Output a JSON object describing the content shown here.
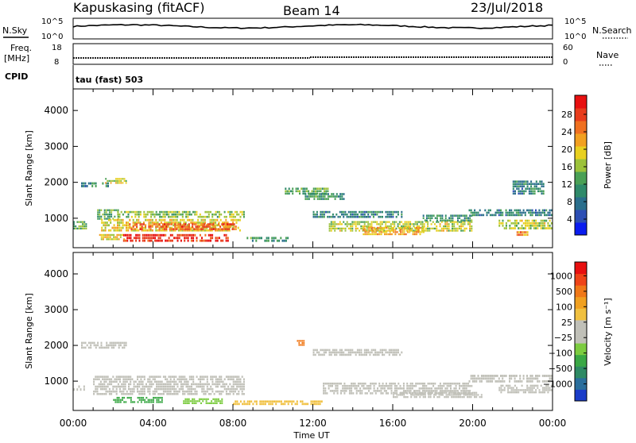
{
  "header": {
    "station": "Kapuskasing (fitACF)",
    "beam": "Beam 14",
    "date": "23/Jul/2018"
  },
  "aux_panels": {
    "nsky_label": "N.Sky",
    "nsky_ticks": [
      "10^5",
      "10^0"
    ],
    "nsearch_label": "N.Search",
    "nsearch_ticks": [
      "10^5",
      "10^0"
    ],
    "freq_label_1": "Freq.",
    "freq_label_2": "[MHz]",
    "freq_ticks": [
      "18",
      "8"
    ],
    "nave_label": "Nave",
    "nave_ticks": [
      "60",
      "0"
    ],
    "cpid_label": "CPID",
    "cpid_value": "tau (fast) 503"
  },
  "colorbars": {
    "power": {
      "label": "Power [dB]",
      "ticks": [
        "4",
        "8",
        "12",
        "16",
        "20",
        "24",
        "28"
      ],
      "colors": [
        "#0a1cf0",
        "#2d4fb4",
        "#2a6e8c",
        "#2f8a6a",
        "#4aa055",
        "#9cc23a",
        "#e8d020",
        "#f2a020",
        "#f07020",
        "#e83c1c",
        "#e81010"
      ]
    },
    "velocity": {
      "label": "Velocity [m s⁻¹]",
      "ticks": [
        "1000",
        "500",
        "100",
        "25",
        "−25",
        "−100",
        "−500",
        "−1000"
      ],
      "colors": [
        "#1a3cc8",
        "#2a6e9c",
        "#2e8a64",
        "#3aa845",
        "#7ccc40",
        "#c0c0b8",
        "#c0c0b8",
        "#f0c040",
        "#f0a020",
        "#f07818",
        "#ef4418",
        "#e81010"
      ]
    }
  },
  "axes": {
    "ylabel": "Slant Range [km]",
    "yticks": [
      "1000",
      "2000",
      "3000",
      "4000"
    ],
    "xticks": [
      "00:00",
      "04:00",
      "08:00",
      "12:00",
      "16:00",
      "20:00",
      "00:00"
    ],
    "xlabel": "Time UT"
  },
  "chart_data": [
    {
      "type": "heatmap",
      "name": "Power",
      "x_range_hours": [
        0,
        24
      ],
      "y_range_km": [
        180,
        4600
      ],
      "y_ticks": [
        1000,
        2000,
        3000,
        4000
      ],
      "x_ticks": [
        "00:00",
        "04:00",
        "08:00",
        "12:00",
        "16:00",
        "20:00",
        "00:00"
      ],
      "ylabel": "Slant Range [km]",
      "patches": [
        {
          "t": [
            0.0,
            0.7
          ],
          "r": [
            680,
            920
          ],
          "v": 12
        },
        {
          "t": [
            0.4,
            1.8
          ],
          "r": [
            1850,
            2000
          ],
          "v": 8
        },
        {
          "t": [
            1.6,
            2.7
          ],
          "r": [
            1950,
            2120
          ],
          "v": 16
        },
        {
          "t": [
            1.2,
            2.3
          ],
          "r": [
            950,
            1250
          ],
          "v": 12
        },
        {
          "t": [
            2.2,
            8.6
          ],
          "r": [
            1000,
            1200
          ],
          "v": 14
        },
        {
          "t": [
            1.4,
            8.4
          ],
          "r": [
            620,
            980
          ],
          "v": 18
        },
        {
          "t": [
            2.8,
            8.2
          ],
          "r": [
            660,
            860
          ],
          "v": 25
        },
        {
          "t": [
            2.5,
            7.8
          ],
          "r": [
            330,
            560
          ],
          "v": 28
        },
        {
          "t": [
            1.3,
            2.6
          ],
          "r": [
            380,
            560
          ],
          "v": 18
        },
        {
          "t": [
            8.6,
            10.8
          ],
          "r": [
            330,
            480
          ],
          "v": 10
        },
        {
          "t": [
            10.6,
            12.8
          ],
          "r": [
            1650,
            1850
          ],
          "v": 12
        },
        {
          "t": [
            11.6,
            13.6
          ],
          "r": [
            1500,
            1700
          ],
          "v": 10
        },
        {
          "t": [
            12.0,
            16.5
          ],
          "r": [
            1000,
            1200
          ],
          "v": 8
        },
        {
          "t": [
            12.8,
            20.0
          ],
          "r": [
            620,
            920
          ],
          "v": 16
        },
        {
          "t": [
            14.5,
            17.6
          ],
          "r": [
            520,
            760
          ],
          "v": 20
        },
        {
          "t": [
            17.5,
            20.0
          ],
          "r": [
            900,
            1100
          ],
          "v": 10
        },
        {
          "t": [
            19.8,
            24.0
          ],
          "r": [
            1050,
            1250
          ],
          "v": 8
        },
        {
          "t": [
            21.3,
            24.0
          ],
          "r": [
            680,
            960
          ],
          "v": 16
        },
        {
          "t": [
            22.2,
            22.8
          ],
          "r": [
            500,
            640
          ],
          "v": 22
        },
        {
          "t": [
            22.0,
            23.6
          ],
          "r": [
            1650,
            2050
          ],
          "v": 8
        }
      ]
    },
    {
      "type": "heatmap",
      "name": "Velocity",
      "x_range_hours": [
        0,
        24
      ],
      "y_range_km": [
        180,
        4600
      ],
      "y_ticks": [
        1000,
        2000,
        3000,
        4000
      ],
      "x_ticks": [
        "00:00",
        "04:00",
        "08:00",
        "12:00",
        "16:00",
        "20:00",
        "00:00"
      ],
      "ylabel": "Slant Range [km]",
      "patches": [
        {
          "t": [
            0.0,
            0.6
          ],
          "r": [
            720,
            880
          ],
          "v": 0
        },
        {
          "t": [
            0.4,
            2.7
          ],
          "r": [
            1900,
            2100
          ],
          "v": 0
        },
        {
          "t": [
            1.0,
            8.6
          ],
          "r": [
            600,
            1150
          ],
          "v": 0
        },
        {
          "t": [
            2.0,
            4.5
          ],
          "r": [
            380,
            560
          ],
          "v": 120
        },
        {
          "t": [
            5.5,
            7.5
          ],
          "r": [
            350,
            520
          ],
          "v": 60
        },
        {
          "t": [
            8.0,
            12.5
          ],
          "r": [
            320,
            460
          ],
          "v": -60
        },
        {
          "t": [
            11.2,
            11.6
          ],
          "r": [
            1980,
            2150
          ],
          "v": -400
        },
        {
          "t": [
            12.0,
            16.5
          ],
          "r": [
            1700,
            1900
          ],
          "v": 0
        },
        {
          "t": [
            12.5,
            20.0
          ],
          "r": [
            620,
            960
          ],
          "v": 0
        },
        {
          "t": [
            16.0,
            20.5
          ],
          "r": [
            520,
            700
          ],
          "v": 0
        },
        {
          "t": [
            19.8,
            24.0
          ],
          "r": [
            950,
            1180
          ],
          "v": 0
        },
        {
          "t": [
            21.3,
            24.0
          ],
          "r": [
            650,
            900
          ],
          "v": 0
        }
      ]
    }
  ]
}
